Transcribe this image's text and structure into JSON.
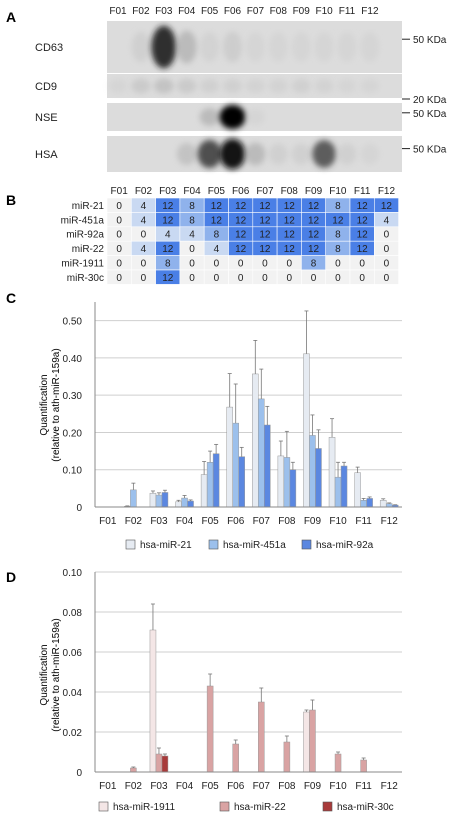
{
  "panel_labels": {
    "a": "A",
    "b": "B",
    "c": "C",
    "d": "D"
  },
  "fractions": [
    "F01",
    "F02",
    "F03",
    "F04",
    "F05",
    "F06",
    "F07",
    "F08",
    "F09",
    "F10",
    "F11",
    "F12"
  ],
  "blots": {
    "rows": [
      {
        "label": "CD63",
        "marker": "50 KDa",
        "intensity": [
          0,
          0.1,
          0.85,
          0.25,
          0.08,
          0.12,
          0.05,
          0.05,
          0.05,
          0.05,
          0.05,
          0.05
        ]
      },
      {
        "label": "CD9",
        "marker": "20 KDa",
        "intensity": [
          0.05,
          0.15,
          0.2,
          0.15,
          0.1,
          0.1,
          0.08,
          0.08,
          0.1,
          0.08,
          0.05,
          0.05
        ]
      },
      {
        "label": "NSE",
        "marker": "50 KDa",
        "intensity": [
          0,
          0,
          0,
          0,
          0.25,
          1.0,
          0.05,
          0,
          0,
          0,
          0,
          0
        ]
      },
      {
        "label": "HSA",
        "marker": "50 KDa",
        "intensity": [
          0,
          0,
          0,
          0.2,
          0.75,
          0.95,
          0.25,
          0.1,
          0.1,
          0.7,
          0.1,
          0.05
        ]
      }
    ]
  },
  "heatmap": {
    "rows": [
      {
        "label": "miR-21",
        "values": [
          0,
          4,
          12,
          8,
          12,
          12,
          12,
          12,
          12,
          8,
          12,
          12
        ]
      },
      {
        "label": "miR-451a",
        "values": [
          0,
          4,
          12,
          8,
          12,
          12,
          12,
          12,
          12,
          12,
          12,
          4
        ]
      },
      {
        "label": "miR-92a",
        "values": [
          0,
          0,
          4,
          4,
          8,
          12,
          12,
          12,
          12,
          8,
          12,
          0
        ]
      },
      {
        "label": "miR-22",
        "values": [
          0,
          4,
          12,
          0,
          4,
          12,
          12,
          12,
          12,
          8,
          12,
          0
        ]
      },
      {
        "label": "miR-1911",
        "values": [
          0,
          0,
          8,
          0,
          0,
          0,
          0,
          0,
          8,
          0,
          0,
          0
        ]
      },
      {
        "label": "miR-30c",
        "values": [
          0,
          0,
          12,
          0,
          0,
          0,
          0,
          0,
          0,
          0,
          0,
          0
        ]
      }
    ],
    "colors": {
      "0": "#f2f2f2",
      "4": "#c9d9f2",
      "8": "#8fb2ec",
      "12": "#4a7fe6"
    }
  },
  "chart_data": [
    {
      "type": "bar",
      "ylabel": "Quantification\n(relative to ath-miR-159a)",
      "ylim": [
        0,
        0.55
      ],
      "yticks": [
        "0",
        "0.10",
        "0.20",
        "0.30",
        "0.40",
        "0.50"
      ],
      "grid": true,
      "legend": "bottom",
      "categories": [
        "F01",
        "F02",
        "F03",
        "F04",
        "F05",
        "F06",
        "F07",
        "F08",
        "F09",
        "F10",
        "F11",
        "F12"
      ],
      "series": [
        {
          "name": "hsa-miR-21",
          "color": "#e6ebf2",
          "values": [
            0,
            0.002,
            0.037,
            0.014,
            0.087,
            0.268,
            0.357,
            0.137,
            0.411,
            0.187,
            0.092,
            0.018
          ],
          "errors": [
            0,
            0.001,
            0.006,
            0.004,
            0.035,
            0.09,
            0.09,
            0.04,
            0.115,
            0.05,
            0.015,
            0.004
          ]
        },
        {
          "name": "hsa-miR-451a",
          "color": "#9cc0ec",
          "values": [
            0,
            0.046,
            0.032,
            0.024,
            0.12,
            0.225,
            0.29,
            0.133,
            0.192,
            0.08,
            0.018,
            0.009
          ],
          "errors": [
            0,
            0.018,
            0.006,
            0.007,
            0.03,
            0.105,
            0.08,
            0.07,
            0.055,
            0.04,
            0.005,
            0.002
          ]
        },
        {
          "name": "hsa-miR-92a",
          "color": "#5b87e0",
          "values": [
            0,
            0,
            0.039,
            0.016,
            0.143,
            0.135,
            0.22,
            0.1,
            0.157,
            0.11,
            0.023,
            0.005
          ],
          "errors": [
            0,
            0,
            0.006,
            0.003,
            0.025,
            0.025,
            0.05,
            0.02,
            0.05,
            0.01,
            0.004,
            0.001
          ]
        }
      ]
    },
    {
      "type": "bar",
      "ylabel": "Quantification\n(relative to ath-miR-159a)",
      "ylim": [
        0,
        0.1
      ],
      "yticks": [
        "0",
        "0.02",
        "0.04",
        "0.06",
        "0.08",
        "0.10"
      ],
      "grid": true,
      "legend": "bottom",
      "categories": [
        "F01",
        "F02",
        "F03",
        "F04",
        "F05",
        "F06",
        "F07",
        "F08",
        "F09",
        "F10",
        "F11",
        "F12"
      ],
      "series": [
        {
          "name": "hsa-miR-1911",
          "color": "#f4e6e6",
          "values": [
            0,
            0,
            0.071,
            0,
            0,
            0,
            0,
            0,
            0.03,
            0,
            0,
            0
          ],
          "errors": [
            0,
            0,
            0.013,
            0,
            0,
            0,
            0,
            0,
            0.001,
            0,
            0,
            0
          ]
        },
        {
          "name": "hsa-miR-22",
          "color": "#d9a3a3",
          "values": [
            0,
            0.002,
            0.009,
            0,
            0.043,
            0.014,
            0.035,
            0.015,
            0.031,
            0.009,
            0.006,
            0
          ],
          "errors": [
            0,
            0.0005,
            0.003,
            0,
            0.006,
            0.002,
            0.007,
            0.003,
            0.005,
            0.001,
            0.001,
            0
          ]
        },
        {
          "name": "hsa-miR-30c",
          "color": "#a83a3a",
          "values": [
            0,
            0,
            0.008,
            0,
            0,
            0,
            0,
            0,
            0,
            0,
            0,
            0
          ],
          "errors": [
            0,
            0,
            0.001,
            0,
            0,
            0,
            0,
            0,
            0,
            0,
            0,
            0
          ]
        }
      ]
    }
  ]
}
